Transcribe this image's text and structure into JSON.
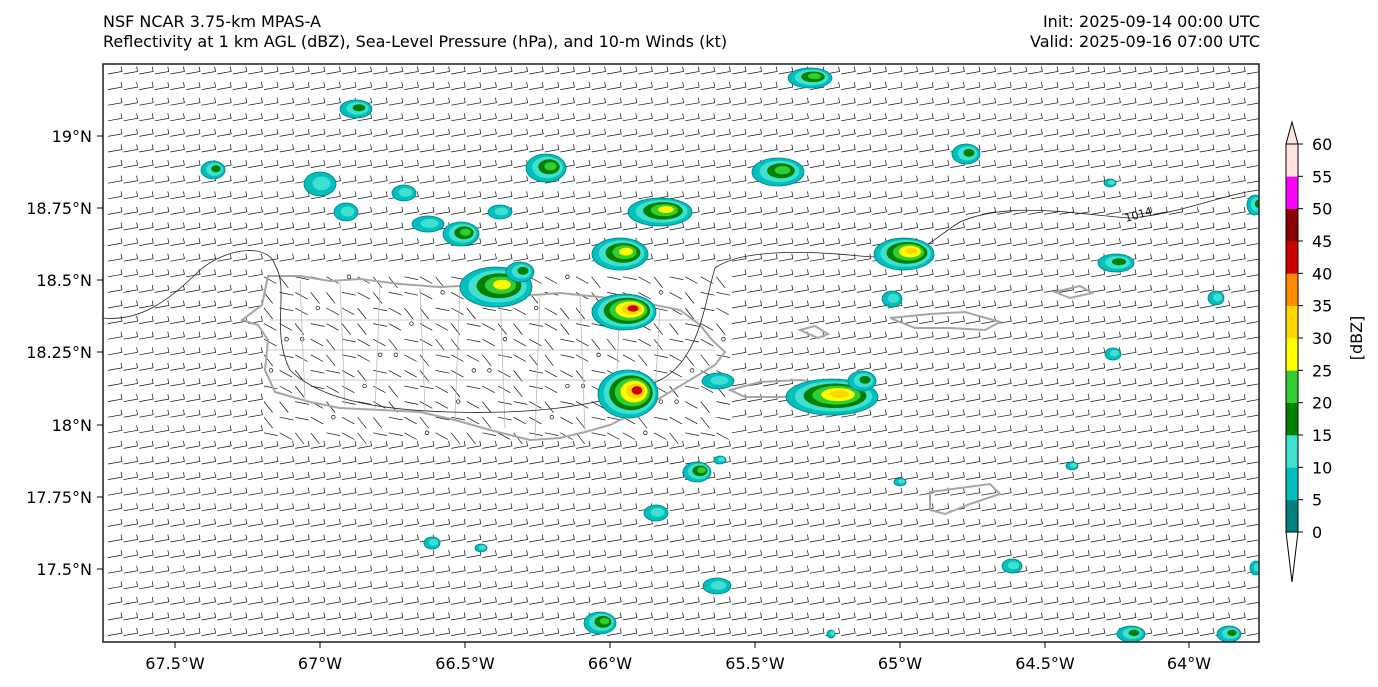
{
  "header": {
    "left_line1": "NSF NCAR 3.75-km MPAS-A",
    "left_line2": "Reflectivity at 1 km AGL (dBZ), Sea-Level Pressure (hPa), and 10-m Winds (kt)",
    "right_line1": "Init: 2025-09-14 00:00 UTC",
    "right_line2": "Valid: 2025-09-16 07:00 UTC"
  },
  "axes": {
    "lon_ticks": [
      "67.5°W",
      "67°W",
      "66.5°W",
      "66°W",
      "65.5°W",
      "65°W",
      "64.5°W",
      "64°W"
    ],
    "lat_ticks": [
      "19°N",
      "18.75°N",
      "18.5°N",
      "18.25°N",
      "18°N",
      "17.75°N",
      "17.5°N"
    ]
  },
  "isobar_label": "1014",
  "colorbar": {
    "label": "[dBZ]",
    "ticks": [
      "0",
      "5",
      "10",
      "15",
      "20",
      "25",
      "30",
      "35",
      "40",
      "45",
      "50",
      "55",
      "60"
    ],
    "colors": [
      "#008080",
      "#00bfbf",
      "#40e0d0",
      "#008000",
      "#32cd32",
      "#ffff00",
      "#ffd700",
      "#ff8c00",
      "#cc0000",
      "#8b0000",
      "#ff00ff",
      "#ffe4e1"
    ]
  },
  "colors": {
    "coastline": "#a6a6a6",
    "isobar": "#222222",
    "wind_barb": "#111111"
  }
}
